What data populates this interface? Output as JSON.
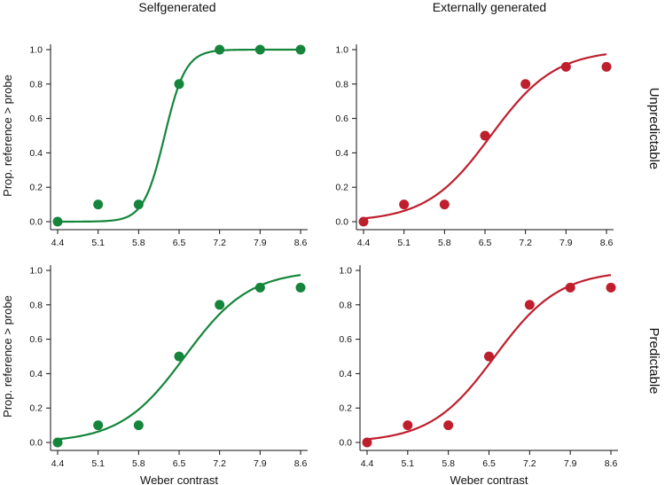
{
  "figure": {
    "column_titles": [
      "Selfgenerated",
      "Externally generated"
    ],
    "row_titles": [
      "Unpredictable",
      "Predictable"
    ],
    "colors": {
      "self": "#14853b",
      "external": "#bf1e2d"
    }
  },
  "chart_data": [
    {
      "type": "scatter",
      "fit": "logistic",
      "panel": "self-unpredictable",
      "color": "#14853b",
      "x": [
        4.4,
        5.1,
        5.8,
        6.5,
        7.2,
        7.9,
        8.6
      ],
      "y": [
        0.0,
        0.1,
        0.1,
        0.8,
        1.0,
        1.0,
        1.0
      ],
      "fit_params": {
        "midpoint": 6.25,
        "slope": 5.5
      },
      "xticks": [
        "4.4",
        "5.1",
        "5.8",
        "6.5",
        "7.2",
        "7.9",
        "8.6"
      ],
      "yticks": [
        "0.0",
        "0.2",
        "0.4",
        "0.6",
        "0.8",
        "1.0"
      ],
      "xlim": [
        4.4,
        8.6
      ],
      "ylim": [
        0,
        1
      ],
      "xlabel": "",
      "ylabel": "Prop. reference > probe"
    },
    {
      "type": "scatter",
      "fit": "logistic",
      "panel": "external-unpredictable",
      "color": "#bf1e2d",
      "x": [
        4.4,
        5.1,
        5.8,
        6.5,
        7.2,
        7.9,
        8.6
      ],
      "y": [
        0.0,
        0.1,
        0.1,
        0.5,
        0.8,
        0.9,
        0.9
      ],
      "fit_params": {
        "midpoint": 6.6,
        "slope": 1.8
      },
      "xticks": [
        "4.4",
        "5.1",
        "5.8",
        "6.5",
        "7.2",
        "7.9",
        "8.6"
      ],
      "yticks": [
        "0.0",
        "0.2",
        "0.4",
        "0.6",
        "0.8",
        "1.0"
      ],
      "xlim": [
        4.4,
        8.6
      ],
      "ylim": [
        0,
        1
      ],
      "xlabel": "",
      "ylabel": ""
    },
    {
      "type": "scatter",
      "fit": "logistic",
      "panel": "self-predictable",
      "color": "#14853b",
      "x": [
        4.4,
        5.1,
        5.8,
        6.5,
        7.2,
        7.9,
        8.6
      ],
      "y": [
        0.0,
        0.1,
        0.1,
        0.5,
        0.8,
        0.9,
        0.9
      ],
      "fit_params": {
        "midpoint": 6.6,
        "slope": 1.8
      },
      "xticks": [
        "4.4",
        "5.1",
        "5.8",
        "6.5",
        "7.2",
        "7.9",
        "8.6"
      ],
      "yticks": [
        "0.0",
        "0.2",
        "0.4",
        "0.6",
        "0.8",
        "1.0"
      ],
      "xlim": [
        4.4,
        8.6
      ],
      "ylim": [
        0,
        1
      ],
      "xlabel": "Weber contrast",
      "ylabel": "Prop. reference > probe"
    },
    {
      "type": "scatter",
      "fit": "logistic",
      "panel": "external-predictable",
      "color": "#bf1e2d",
      "x": [
        4.4,
        5.1,
        5.8,
        6.5,
        7.2,
        7.9,
        8.6
      ],
      "y": [
        0.0,
        0.1,
        0.1,
        0.5,
        0.8,
        0.9,
        0.9
      ],
      "fit_params": {
        "midpoint": 6.6,
        "slope": 1.8
      },
      "xticks": [
        "4.4",
        "5.1",
        "5.8",
        "6.5",
        "7.2",
        "7.9",
        "8.6"
      ],
      "yticks": [
        "0.0",
        "0.2",
        "0.4",
        "0.6",
        "0.8",
        "1.0"
      ],
      "xlim": [
        4.4,
        8.6
      ],
      "ylim": [
        0,
        1
      ],
      "xlabel": "Weber contrast",
      "ylabel": ""
    }
  ]
}
